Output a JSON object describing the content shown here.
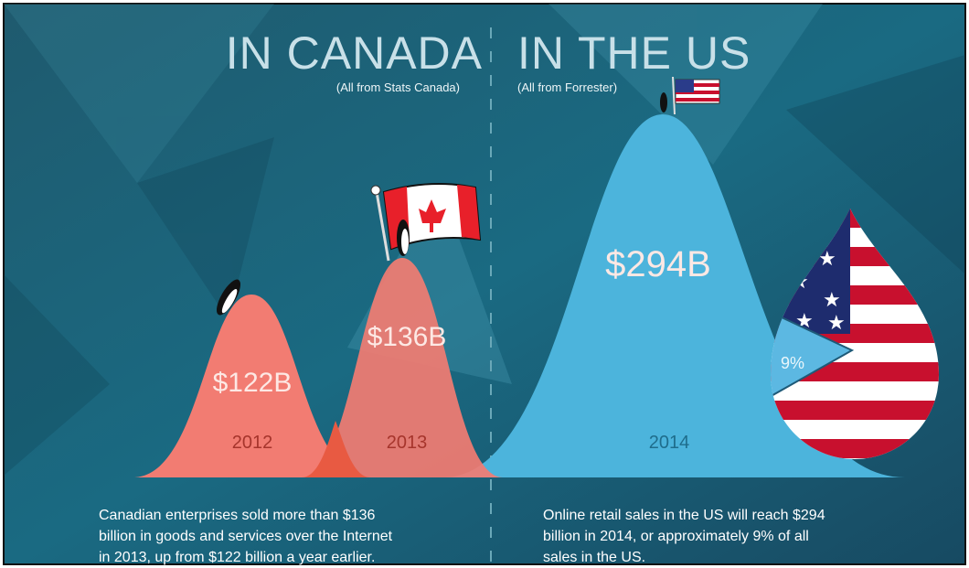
{
  "header": {
    "canada_title": "IN CANADA",
    "canada_source": "(All from Stats Canada)",
    "us_title": "IN THE US",
    "us_source": "(All from Forrester)"
  },
  "canada": {
    "curves": [
      {
        "value": "$122B",
        "year": "2012"
      },
      {
        "value": "$136B",
        "year": "2013"
      }
    ],
    "description": [
      "Canadian enterprises sold more than $136",
      "billion in goods and services over the Internet",
      "in 2013, up from $122 billion a year earlier."
    ]
  },
  "us": {
    "curve": {
      "value": "$294B",
      "year": "2014"
    },
    "share": "9%",
    "description": [
      "Online retail sales in the US will reach $294",
      "billion in 2014, or approximately 9% of all",
      "sales in the US."
    ]
  }
}
